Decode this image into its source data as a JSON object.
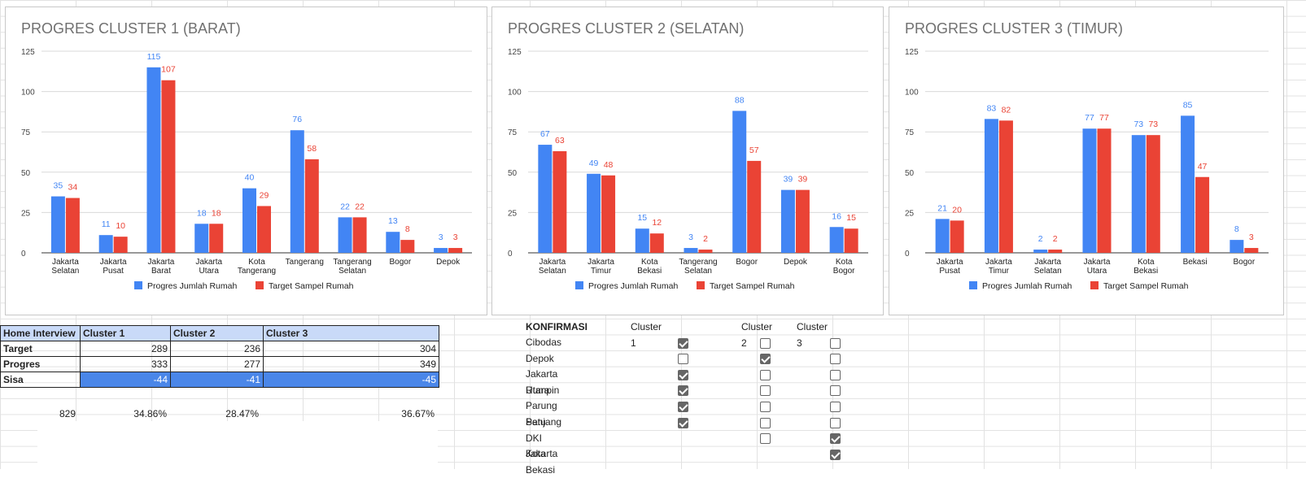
{
  "charts": [
    {
      "title": "PROGRES CLUSTER 1 (BARAT)",
      "categories": [
        [
          "Jakarta",
          "Selatan"
        ],
        [
          "Jakarta",
          "Pusat"
        ],
        [
          "Jakarta",
          "Barat"
        ],
        [
          "Jakarta",
          "Utara"
        ],
        [
          "Kota",
          "Tangerang"
        ],
        [
          "Tangerang"
        ],
        [
          "Tangerang",
          "Selatan"
        ],
        [
          "Bogor"
        ],
        [
          "Depok"
        ]
      ],
      "progres": [
        35,
        11,
        115,
        18,
        40,
        76,
        22,
        13,
        3
      ],
      "target": [
        34,
        10,
        107,
        18,
        29,
        58,
        22,
        8,
        3
      ]
    },
    {
      "title": "PROGRES CLUSTER 2 (SELATAN)",
      "categories": [
        [
          "Jakarta",
          "Selatan"
        ],
        [
          "Jakarta",
          "Timur"
        ],
        [
          "Kota",
          "Bekasi"
        ],
        [
          "Tangerang",
          "Selatan"
        ],
        [
          "Bogor"
        ],
        [
          "Depok"
        ],
        [
          "Kota",
          "Bogor"
        ]
      ],
      "progres": [
        67,
        49,
        15,
        3,
        88,
        39,
        16
      ],
      "target": [
        63,
        48,
        12,
        2,
        57,
        39,
        15
      ]
    },
    {
      "title": "PROGRES CLUSTER 3 (TIMUR)",
      "categories": [
        [
          "Jakarta",
          "Pusat"
        ],
        [
          "Jakarta",
          "Timur"
        ],
        [
          "Jakarta",
          "Selatan"
        ],
        [
          "Jakarta",
          "Utara"
        ],
        [
          "Kota",
          "Bekasi"
        ],
        [
          "Bekasi"
        ],
        [
          "Bogor"
        ]
      ],
      "progres": [
        21,
        83,
        2,
        77,
        73,
        85,
        8
      ],
      "target": [
        20,
        82,
        2,
        77,
        73,
        47,
        3
      ]
    }
  ],
  "chart_data": [
    {
      "type": "bar",
      "title": "PROGRES CLUSTER 1 (BARAT)",
      "categories": [
        "Jakarta Selatan",
        "Jakarta Pusat",
        "Jakarta Barat",
        "Jakarta Utara",
        "Kota Tangerang",
        "Tangerang",
        "Tangerang Selatan",
        "Bogor",
        "Depok"
      ],
      "series": [
        {
          "name": "Progres Jumlah Rumah",
          "values": [
            35,
            11,
            115,
            18,
            40,
            76,
            22,
            13,
            3
          ]
        },
        {
          "name": "Target Sampel Rumah",
          "values": [
            34,
            10,
            107,
            18,
            29,
            58,
            22,
            8,
            3
          ]
        }
      ],
      "ylim": [
        0,
        125
      ],
      "yticks": [
        0,
        25,
        50,
        75,
        100,
        125
      ],
      "legend": "bottom",
      "grid": true
    },
    {
      "type": "bar",
      "title": "PROGRES CLUSTER 2 (SELATAN)",
      "categories": [
        "Jakarta Selatan",
        "Jakarta Timur",
        "Kota Bekasi",
        "Tangerang Selatan",
        "Bogor",
        "Depok",
        "Kota Bogor"
      ],
      "series": [
        {
          "name": "Progres Jumlah Rumah",
          "values": [
            67,
            49,
            15,
            3,
            88,
            39,
            16
          ]
        },
        {
          "name": "Target Sampel Rumah",
          "values": [
            63,
            48,
            12,
            2,
            57,
            39,
            15
          ]
        }
      ],
      "ylim": [
        0,
        125
      ],
      "yticks": [
        0,
        25,
        50,
        75,
        100,
        125
      ],
      "legend": "bottom",
      "grid": true
    },
    {
      "type": "bar",
      "title": "PROGRES CLUSTER 3 (TIMUR)",
      "categories": [
        "Jakarta Pusat",
        "Jakarta Timur",
        "Jakarta Selatan",
        "Jakarta Utara",
        "Kota Bekasi",
        "Bekasi",
        "Bogor"
      ],
      "series": [
        {
          "name": "Progres Jumlah Rumah",
          "values": [
            21,
            83,
            2,
            77,
            73,
            85,
            8
          ]
        },
        {
          "name": "Target Sampel Rumah",
          "values": [
            20,
            82,
            2,
            77,
            73,
            47,
            3
          ]
        }
      ],
      "ylim": [
        0,
        125
      ],
      "yticks": [
        0,
        25,
        50,
        75,
        100,
        125
      ],
      "legend": "bottom",
      "grid": true
    }
  ],
  "yticks": [
    "0",
    "25",
    "50",
    "75",
    "100",
    "125"
  ],
  "legend": {
    "progres": "Progres Jumlah Rumah",
    "target": "Target Sampel Rumah"
  },
  "colors": {
    "progres": "#4285f4",
    "target": "#ea4335",
    "header_bg": "#c9daf8",
    "sisa_bg": "#4a86e8"
  },
  "table": {
    "headers": [
      "Home Interview",
      "Cluster 1",
      "Cluster 2",
      "Cluster 3"
    ],
    "rows": [
      {
        "label": "Target",
        "values": [
          "289",
          "236",
          "304"
        ]
      },
      {
        "label": "Progres",
        "values": [
          "333",
          "277",
          "349"
        ]
      },
      {
        "label": "Sisa",
        "values": [
          "-44",
          "-41",
          "-45"
        ]
      }
    ],
    "total": "829",
    "percents": [
      "34.86%",
      "28.47%",
      "36.67%"
    ]
  },
  "konfirmasi": {
    "title": "KONFIRMASI",
    "columns": [
      "Cluster 1",
      "Cluster 2",
      "Cluster 3"
    ],
    "rows": [
      {
        "name": "Cibodas",
        "checks": [
          true,
          false,
          false
        ]
      },
      {
        "name": "Depok",
        "checks": [
          false,
          true,
          false
        ]
      },
      {
        "name": "Jakarta Utara",
        "checks": [
          true,
          false,
          false
        ]
      },
      {
        "name": "Rumpin",
        "checks": [
          true,
          false,
          false
        ]
      },
      {
        "name": "Parung Panjang",
        "checks": [
          true,
          false,
          false
        ]
      },
      {
        "name": "Setu",
        "checks": [
          true,
          false,
          false
        ]
      },
      {
        "name": "DKI Jakarta",
        "checks": [
          null,
          false,
          true
        ]
      },
      {
        "name": "Kota Bekasi",
        "checks": [
          null,
          null,
          true
        ]
      }
    ]
  }
}
